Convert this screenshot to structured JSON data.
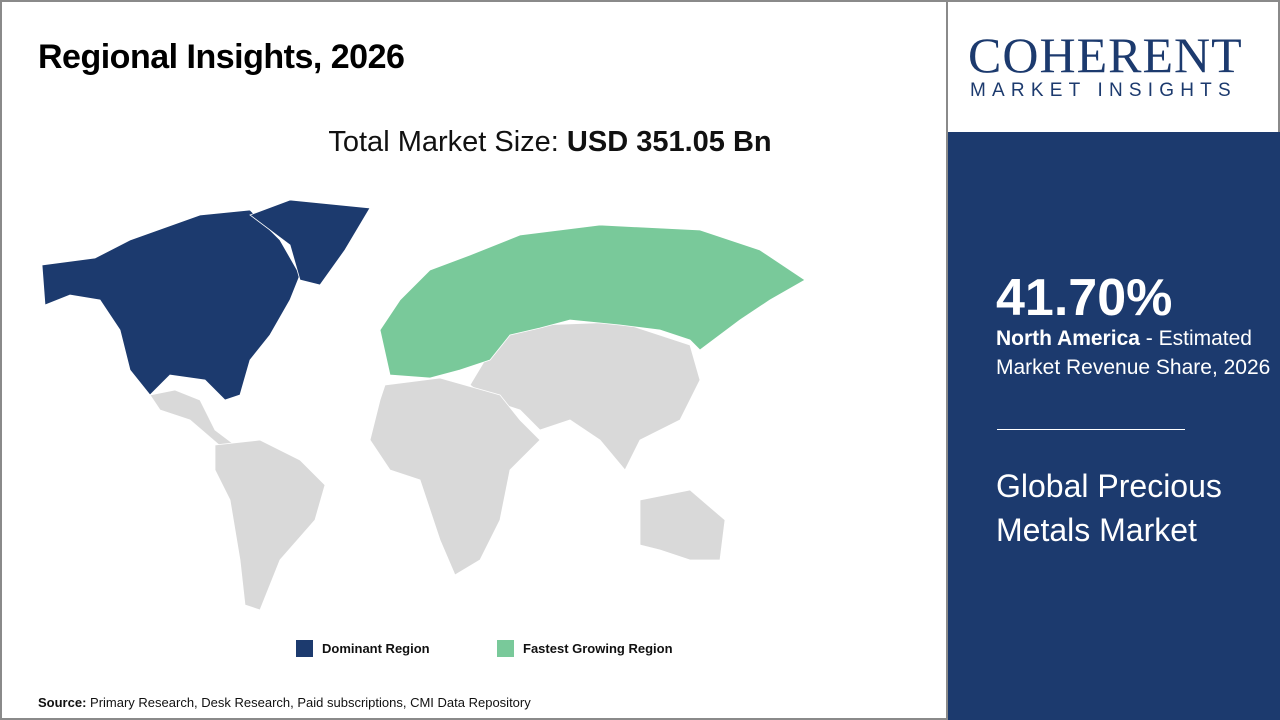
{
  "title": "Regional Insights, 2026",
  "total_market": {
    "label": "Total Market Size:",
    "value": "USD 351.05 Bn"
  },
  "legend": [
    {
      "label": "Dominant Region",
      "color": "#1c3a6e"
    },
    {
      "label": "Fastest Growing Region",
      "color": "#79c99a"
    }
  ],
  "source": {
    "label": "Source:",
    "text": "Primary Research, Desk Research, Paid subscriptions, CMI Data Repository"
  },
  "logo": {
    "main": "COHERENT",
    "sub": "MARKET INSIGHTS"
  },
  "highlight": {
    "percent": "41.70%",
    "region": "North America",
    "description": " - Estimated Market Revenue Share, 2026"
  },
  "market_name": "Global Precious Metals Market",
  "map": {
    "dominant_region": "North America",
    "fastest_growing_region": "Europe",
    "colors": {
      "dominant": "#1c3a6e",
      "fastest": "#79c99a",
      "other": "#d9d9d9"
    }
  }
}
